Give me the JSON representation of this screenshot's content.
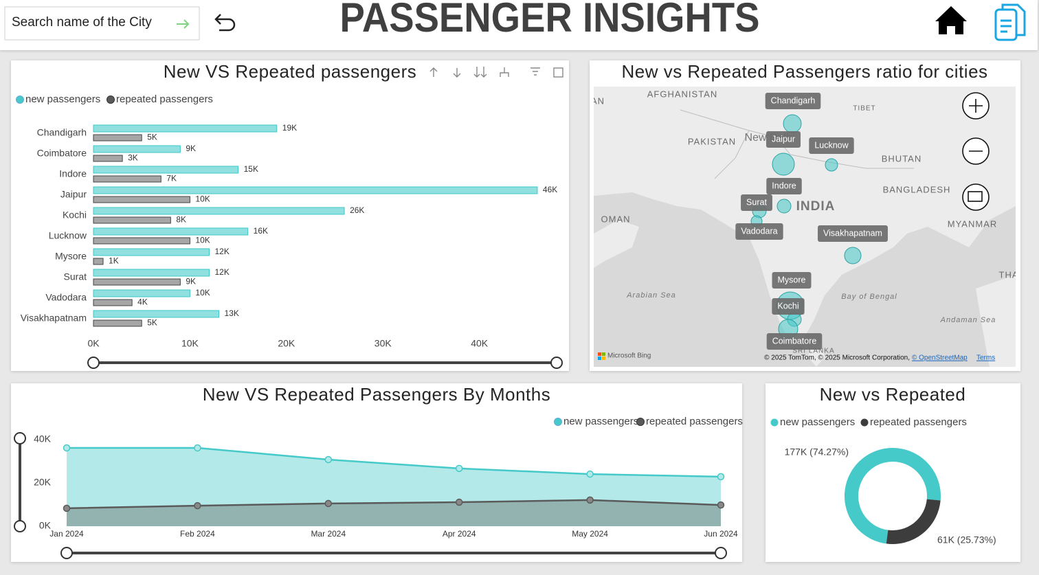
{
  "header": {
    "search_placeholder": "Search name of the City",
    "title": "PASSENGER INSIGHTS"
  },
  "chart_data": [
    {
      "type": "bar",
      "orientation": "horizontal",
      "title": "New VS Repeated passengers",
      "categories": [
        "Chandigarh",
        "Coimbatore",
        "Indore",
        "Jaipur",
        "Kochi",
        "Lucknow",
        "Mysore",
        "Surat",
        "Vadodara",
        "Visakhapatnam"
      ],
      "series": [
        {
          "name": "new passengers",
          "color": "#8fe0de",
          "values": [
            19000,
            9000,
            15000,
            46000,
            26000,
            16000,
            12000,
            12000,
            10000,
            13000
          ],
          "value_labels": [
            "19K",
            "9K",
            "15K",
            "46K",
            "26K",
            "16K",
            "12K",
            "12K",
            "10K",
            "13K"
          ]
        },
        {
          "name": "repeated passengers",
          "color": "#a6a6a6",
          "values": [
            5000,
            3000,
            7000,
            10000,
            8000,
            10000,
            1000,
            9000,
            4000,
            5000
          ],
          "value_labels": [
            "5K",
            "3K",
            "7K",
            "10K",
            "8K",
            "10K",
            "1K",
            "9K",
            "4K",
            "5K"
          ]
        }
      ],
      "xlim": [
        0,
        48000
      ],
      "xticks": [
        {
          "value": 0,
          "label": "0K"
        },
        {
          "value": 10000,
          "label": "10K"
        },
        {
          "value": 20000,
          "label": "20K"
        },
        {
          "value": 30000,
          "label": "30K"
        },
        {
          "value": 40000,
          "label": "40K"
        }
      ],
      "legend": "top-left"
    },
    {
      "type": "area",
      "title": "New VS Repeated Passengers By Months",
      "categories": [
        "Jan 2024",
        "Feb 2024",
        "Mar 2024",
        "Apr 2024",
        "May 2024",
        "Jun 2024"
      ],
      "series": [
        {
          "name": "new passengers",
          "color": "#46c9c9",
          "values": [
            36200,
            36200,
            30800,
            26700,
            24100,
            22900
          ]
        },
        {
          "name": "repeated passengers",
          "color": "#5a5a5a",
          "values": [
            8300,
            9500,
            10500,
            11100,
            12100,
            9800
          ]
        }
      ],
      "ylim": [
        0,
        40000
      ],
      "yticks": [
        {
          "value": 0,
          "label": "0K"
        },
        {
          "value": 20000,
          "label": "20K"
        },
        {
          "value": 40000,
          "label": "40K"
        }
      ],
      "legend": "top-right"
    },
    {
      "type": "donut",
      "title": "New vs Repeated",
      "categories": [
        "new passengers",
        "repeated passengers"
      ],
      "values": [
        177000,
        61000
      ],
      "value_labels": [
        "177K (74.27%)",
        "61K (25.73%)"
      ],
      "colors": [
        "#46c9c9",
        "#3d3d3d"
      ],
      "legend": "top-left"
    }
  ],
  "map": {
    "title": "New vs Repeated Passengers ratio for cities",
    "cities": [
      "Chandigarh",
      "Jaipur",
      "Lucknow",
      "Indore",
      "Surat",
      "Vadodara",
      "Visakhapatnam",
      "Mysore",
      "Kochi",
      "Coimbatore"
    ],
    "places": [
      "AFGHANISTAN",
      "PAKISTAN",
      "New Delhi",
      "TIBET",
      "BHUTAN",
      "BANGLADESH",
      "INDIA",
      "MYANMAR",
      "OMAN",
      "Arabian Sea",
      "Bay of Bengal",
      "Andaman Sea",
      "SRI LANKA",
      "AN",
      "THA"
    ],
    "brand": "Microsoft Bing",
    "attribution": "© 2025 TomTom, © 2025 Microsoft Corporation,",
    "osm": "© OpenStreetMap",
    "terms": "Terms"
  }
}
